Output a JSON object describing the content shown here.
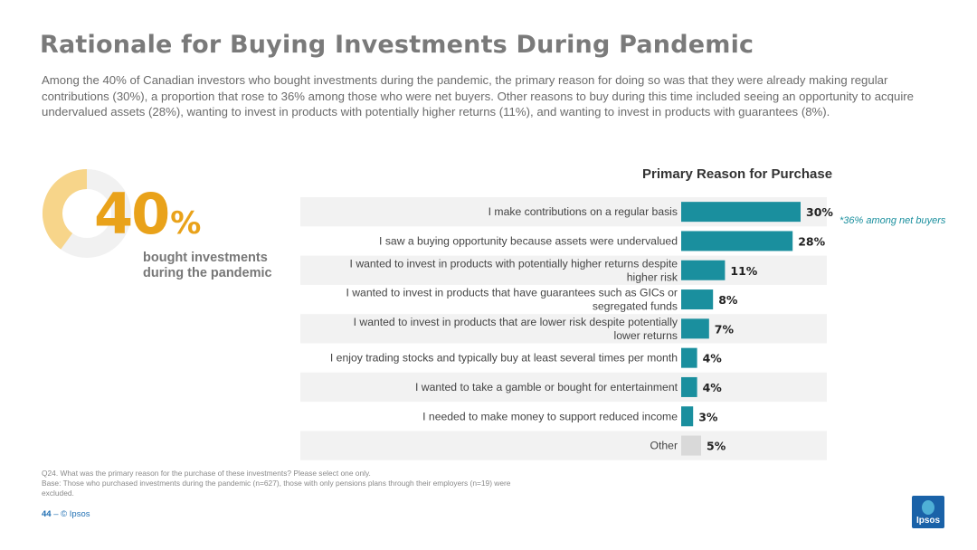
{
  "header": {
    "title": "Rationale for Buying Investments During Pandemic",
    "summary": "Among the 40% of Canadian investors who bought investments during the pandemic, the primary reason for doing so was that they were already making regular contributions (30%), a proportion that rose to 36% among those who were net buyers. Other reasons to buy during this time included seeing an opportunity to acquire undervalued assets (28%), wanting to invest in products with potentially higher returns (11%), and wanting to invest in products with guarantees (8%)."
  },
  "kpi": {
    "value": 40,
    "number": "40",
    "suffix": "%",
    "label": "bought investments during the pandemic",
    "colors": {
      "fill": "#f7d58a",
      "track": "#f1f1f1",
      "number": "#e9a21a"
    }
  },
  "chart_data": {
    "type": "bar",
    "orientation": "horizontal",
    "title": "Primary Reason for Purchase",
    "categories": [
      "I make contributions on a regular basis",
      "I saw a buying opportunity because assets were undervalued",
      "I wanted to invest in products with potentially higher returns despite higher risk",
      "I wanted to invest in products that have guarantees such as GICs or segregated funds",
      "I wanted to invest in products that are lower risk despite potentially lower returns",
      "I enjoy trading stocks and typically buy at least several times per month",
      "I wanted to take a gamble or bought for entertainment",
      "I needed to make money to support reduced income",
      "Other"
    ],
    "category_lines": [
      [
        "I make contributions on a regular basis"
      ],
      [
        "I saw a buying opportunity because assets were undervalued"
      ],
      [
        "I wanted to invest in products with potentially higher returns despite",
        "higher risk"
      ],
      [
        "I wanted to invest in products that have guarantees such as GICs or",
        "segregated funds"
      ],
      [
        "I wanted to invest in products that are lower risk despite potentially",
        "lower returns"
      ],
      [
        "I enjoy trading stocks and typically buy at least several times per month"
      ],
      [
        "I wanted to take a gamble or bought for entertainment"
      ],
      [
        "I needed to make money to support reduced income"
      ],
      [
        "Other"
      ]
    ],
    "values": [
      30,
      28,
      11,
      8,
      7,
      4,
      4,
      3,
      5
    ],
    "value_labels": [
      "30%",
      "28%",
      "11%",
      "8%",
      "7%",
      "4%",
      "4%",
      "3%",
      "5%"
    ],
    "xlim": [
      0,
      30
    ],
    "colors": {
      "bar": "#1a8f9e",
      "other_bar": "#d9d9d9",
      "row_band": "#f2f2f2"
    },
    "annotation": "*36% among net buyers"
  },
  "footer": {
    "question": "Q24. What was the primary reason for the purchase of these investments? Please select one only.",
    "base": "Base: Those who purchased investments during the pandemic (n=627), those with only pensions plans through their employers (n=19) were excluded.",
    "page_number": "44",
    "separator": "–",
    "copyright": "© Ipsos",
    "logo_text": "Ipsos"
  }
}
